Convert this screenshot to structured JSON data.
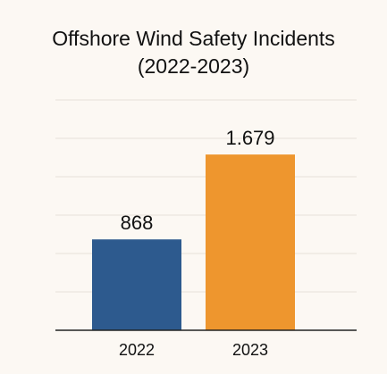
{
  "chart_data": {
    "type": "bar",
    "title_lines": [
      "Offshore Wind Safety Incidents",
      "(2022-2023)"
    ],
    "categories": [
      "2022",
      "2023"
    ],
    "values": [
      868,
      1679
    ],
    "value_labels": [
      "868",
      "1.679"
    ],
    "bar_colors": [
      "#2d5a8e",
      "#ee962e"
    ],
    "ylim": [
      0,
      2200
    ],
    "grid": true,
    "xlabel": "",
    "ylabel": ""
  }
}
